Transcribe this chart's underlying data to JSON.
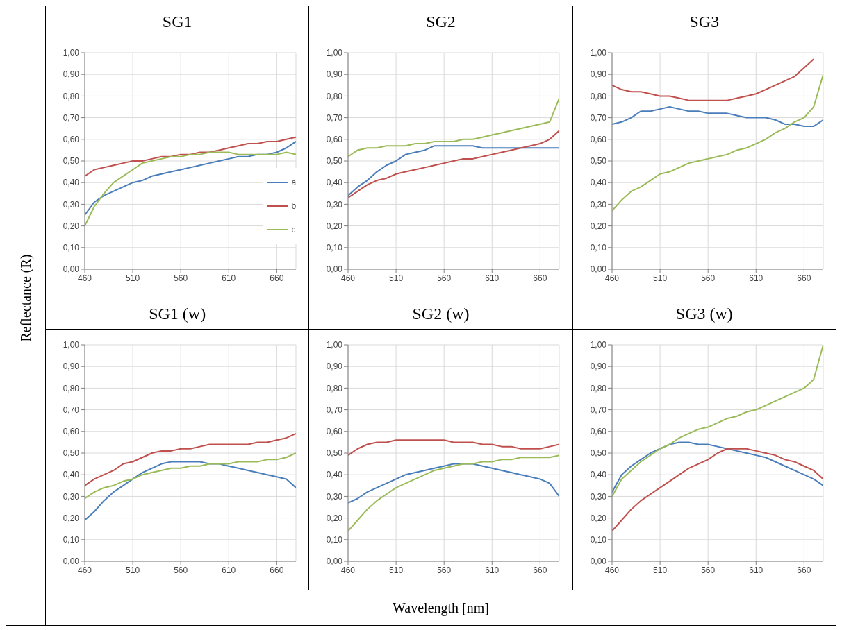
{
  "chart_data": [
    {
      "type": "line",
      "title": "SG1",
      "ylabel": "Reflectance (R)",
      "x": [
        460,
        470,
        480,
        490,
        500,
        510,
        520,
        530,
        540,
        550,
        560,
        570,
        580,
        590,
        600,
        610,
        620,
        630,
        640,
        650,
        660,
        670,
        680
      ],
      "xlim": [
        460,
        680
      ],
      "xticks": [
        460,
        510,
        560,
        610,
        660
      ],
      "ylim": [
        0,
        1
      ],
      "yticks": [
        {
          "value": 0,
          "label": "0,00"
        },
        {
          "value": 0.1,
          "label": "0,10"
        },
        {
          "value": 0.2,
          "label": "0,20"
        },
        {
          "value": 0.3,
          "label": "0,30"
        },
        {
          "value": 0.4,
          "label": "0,40"
        },
        {
          "value": 0.5,
          "label": "0,50"
        },
        {
          "value": 0.6,
          "label": "0,60"
        },
        {
          "value": 0.7,
          "label": "0,70"
        },
        {
          "value": 0.8,
          "label": "0,80"
        },
        {
          "value": 0.9,
          "label": "0,90"
        },
        {
          "value": 1,
          "label": "1,00"
        }
      ],
      "grid": true,
      "legend": "bottom right",
      "series": [
        {
          "name": "a",
          "color": "#4a7ebb",
          "values": [
            0.25,
            0.31,
            0.34,
            0.36,
            0.38,
            0.4,
            0.41,
            0.43,
            0.44,
            0.45,
            0.46,
            0.47,
            0.48,
            0.49,
            0.5,
            0.51,
            0.52,
            0.52,
            0.53,
            0.53,
            0.54,
            0.56,
            0.59
          ]
        },
        {
          "name": "b",
          "color": "#c0504d",
          "values": [
            0.43,
            0.46,
            0.47,
            0.48,
            0.49,
            0.5,
            0.5,
            0.51,
            0.52,
            0.52,
            0.53,
            0.53,
            0.54,
            0.54,
            0.55,
            0.56,
            0.57,
            0.58,
            0.58,
            0.59,
            0.59,
            0.6,
            0.61
          ]
        },
        {
          "name": "c",
          "color": "#9bbb59",
          "values": [
            0.2,
            0.29,
            0.35,
            0.4,
            0.43,
            0.46,
            0.49,
            0.5,
            0.51,
            0.52,
            0.52,
            0.53,
            0.53,
            0.54,
            0.54,
            0.54,
            0.53,
            0.53,
            0.53,
            0.53,
            0.53,
            0.54,
            0.53
          ]
        }
      ]
    },
    {
      "type": "line",
      "title": "SG2",
      "x": [
        460,
        470,
        480,
        490,
        500,
        510,
        520,
        530,
        540,
        550,
        560,
        570,
        580,
        590,
        600,
        610,
        620,
        630,
        640,
        650,
        660,
        670,
        680
      ],
      "xlim": [
        460,
        680
      ],
      "xticks": [
        460,
        510,
        560,
        610,
        660
      ],
      "ylim": [
        0,
        1
      ],
      "yticks": [
        {
          "value": 0,
          "label": "0,00"
        },
        {
          "value": 0.1,
          "label": "0,10"
        },
        {
          "value": 0.2,
          "label": "0,20"
        },
        {
          "value": 0.3,
          "label": "0,30"
        },
        {
          "value": 0.4,
          "label": "0,40"
        },
        {
          "value": 0.5,
          "label": "0,50"
        },
        {
          "value": 0.6,
          "label": "0,60"
        },
        {
          "value": 0.7,
          "label": "0,70"
        },
        {
          "value": 0.8,
          "label": "0,80"
        },
        {
          "value": 0.9,
          "label": "0,90"
        },
        {
          "value": 1,
          "label": "1,00"
        }
      ],
      "grid": true,
      "series": [
        {
          "color": "#4a7ebb",
          "values": [
            0.34,
            0.38,
            0.41,
            0.45,
            0.48,
            0.5,
            0.53,
            0.54,
            0.55,
            0.57,
            0.57,
            0.57,
            0.57,
            0.57,
            0.56,
            0.56,
            0.56,
            0.56,
            0.56,
            0.56,
            0.56,
            0.56,
            0.56
          ]
        },
        {
          "color": "#c0504d",
          "values": [
            0.33,
            0.36,
            0.39,
            0.41,
            0.42,
            0.44,
            0.45,
            0.46,
            0.47,
            0.48,
            0.49,
            0.5,
            0.51,
            0.51,
            0.52,
            0.53,
            0.54,
            0.55,
            0.56,
            0.57,
            0.58,
            0.6,
            0.64
          ]
        },
        {
          "color": "#9bbb59",
          "values": [
            0.52,
            0.55,
            0.56,
            0.56,
            0.57,
            0.57,
            0.57,
            0.58,
            0.58,
            0.59,
            0.59,
            0.59,
            0.6,
            0.6,
            0.61,
            0.62,
            0.63,
            0.64,
            0.65,
            0.66,
            0.67,
            0.68,
            0.79
          ]
        }
      ]
    },
    {
      "type": "line",
      "title": "SG3",
      "x": [
        460,
        470,
        480,
        490,
        500,
        510,
        520,
        530,
        540,
        550,
        560,
        570,
        580,
        590,
        600,
        610,
        620,
        630,
        640,
        650,
        660,
        670,
        680
      ],
      "xlim": [
        460,
        680
      ],
      "xticks": [
        460,
        510,
        560,
        610,
        660
      ],
      "ylim": [
        0,
        1
      ],
      "yticks": [
        {
          "value": 0,
          "label": "0,00"
        },
        {
          "value": 0.1,
          "label": "0,10"
        },
        {
          "value": 0.2,
          "label": "0,20"
        },
        {
          "value": 0.3,
          "label": "0,30"
        },
        {
          "value": 0.4,
          "label": "0,40"
        },
        {
          "value": 0.5,
          "label": "0,50"
        },
        {
          "value": 0.6,
          "label": "0,60"
        },
        {
          "value": 0.7,
          "label": "0,70"
        },
        {
          "value": 0.8,
          "label": "0,80"
        },
        {
          "value": 0.9,
          "label": "0,90"
        },
        {
          "value": 1,
          "label": "1,00"
        }
      ],
      "grid": true,
      "series": [
        {
          "color": "#4a7ebb",
          "values": [
            0.67,
            0.68,
            0.7,
            0.73,
            0.73,
            0.74,
            0.75,
            0.74,
            0.73,
            0.73,
            0.72,
            0.72,
            0.72,
            0.71,
            0.7,
            0.7,
            0.7,
            0.69,
            0.67,
            0.67,
            0.66,
            0.66,
            0.69
          ]
        },
        {
          "color": "#c0504d",
          "values": [
            0.85,
            0.83,
            0.82,
            0.82,
            0.81,
            0.8,
            0.8,
            0.79,
            0.78,
            0.78,
            0.78,
            0.78,
            0.78,
            0.79,
            0.8,
            0.81,
            0.83,
            0.85,
            0.87,
            0.89,
            0.93,
            0.97,
            null
          ]
        },
        {
          "color": "#9bbb59",
          "values": [
            0.27,
            0.32,
            0.36,
            0.38,
            0.41,
            0.44,
            0.45,
            0.47,
            0.49,
            0.5,
            0.51,
            0.52,
            0.53,
            0.55,
            0.56,
            0.58,
            0.6,
            0.63,
            0.65,
            0.68,
            0.7,
            0.75,
            0.9
          ]
        }
      ]
    },
    {
      "type": "line",
      "title": "SG1 (w)",
      "x": [
        460,
        470,
        480,
        490,
        500,
        510,
        520,
        530,
        540,
        550,
        560,
        570,
        580,
        590,
        600,
        610,
        620,
        630,
        640,
        650,
        660,
        670,
        680
      ],
      "xlim": [
        460,
        680
      ],
      "xticks": [
        460,
        510,
        560,
        610,
        660
      ],
      "ylim": [
        0,
        1
      ],
      "yticks": [
        {
          "value": 0,
          "label": "0,00"
        },
        {
          "value": 0.1,
          "label": "0,10"
        },
        {
          "value": 0.2,
          "label": "0,20"
        },
        {
          "value": 0.3,
          "label": "0,30"
        },
        {
          "value": 0.4,
          "label": "0,40"
        },
        {
          "value": 0.5,
          "label": "0,50"
        },
        {
          "value": 0.6,
          "label": "0,60"
        },
        {
          "value": 0.7,
          "label": "0,70"
        },
        {
          "value": 0.8,
          "label": "0,80"
        },
        {
          "value": 0.9,
          "label": "0,90"
        },
        {
          "value": 1,
          "label": "1,00"
        }
      ],
      "grid": true,
      "series": [
        {
          "color": "#4a7ebb",
          "values": [
            0.19,
            0.23,
            0.28,
            0.32,
            0.35,
            0.38,
            0.41,
            0.43,
            0.45,
            0.46,
            0.46,
            0.46,
            0.46,
            0.45,
            0.45,
            0.44,
            0.43,
            0.42,
            0.41,
            0.4,
            0.39,
            0.38,
            0.34
          ]
        },
        {
          "color": "#c0504d",
          "values": [
            0.35,
            0.38,
            0.4,
            0.42,
            0.45,
            0.46,
            0.48,
            0.5,
            0.51,
            0.51,
            0.52,
            0.52,
            0.53,
            0.54,
            0.54,
            0.54,
            0.54,
            0.54,
            0.55,
            0.55,
            0.56,
            0.57,
            0.59
          ]
        },
        {
          "color": "#9bbb59",
          "values": [
            0.29,
            0.32,
            0.34,
            0.35,
            0.37,
            0.38,
            0.4,
            0.41,
            0.42,
            0.43,
            0.43,
            0.44,
            0.44,
            0.45,
            0.45,
            0.45,
            0.46,
            0.46,
            0.46,
            0.47,
            0.47,
            0.48,
            0.5
          ]
        }
      ]
    },
    {
      "type": "line",
      "title": "SG2 (w)",
      "xlabel": "Wavelength [nm]",
      "x": [
        460,
        470,
        480,
        490,
        500,
        510,
        520,
        530,
        540,
        550,
        560,
        570,
        580,
        590,
        600,
        610,
        620,
        630,
        640,
        650,
        660,
        670,
        680
      ],
      "xlim": [
        460,
        680
      ],
      "xticks": [
        460,
        510,
        560,
        610,
        660
      ],
      "ylim": [
        0,
        1
      ],
      "yticks": [
        {
          "value": 0,
          "label": "0,00"
        },
        {
          "value": 0.1,
          "label": "0,10"
        },
        {
          "value": 0.2,
          "label": "0,20"
        },
        {
          "value": 0.3,
          "label": "0,30"
        },
        {
          "value": 0.4,
          "label": "0,40"
        },
        {
          "value": 0.5,
          "label": "0,50"
        },
        {
          "value": 0.6,
          "label": "0,60"
        },
        {
          "value": 0.7,
          "label": "0,70"
        },
        {
          "value": 0.8,
          "label": "0,80"
        },
        {
          "value": 0.9,
          "label": "0,90"
        },
        {
          "value": 1,
          "label": "1,00"
        }
      ],
      "grid": true,
      "series": [
        {
          "color": "#4a7ebb",
          "values": [
            0.27,
            0.29,
            0.32,
            0.34,
            0.36,
            0.38,
            0.4,
            0.41,
            0.42,
            0.43,
            0.44,
            0.45,
            0.45,
            0.45,
            0.44,
            0.43,
            0.42,
            0.41,
            0.4,
            0.39,
            0.38,
            0.36,
            0.3
          ]
        },
        {
          "color": "#c0504d",
          "values": [
            0.49,
            0.52,
            0.54,
            0.55,
            0.55,
            0.56,
            0.56,
            0.56,
            0.56,
            0.56,
            0.56,
            0.55,
            0.55,
            0.55,
            0.54,
            0.54,
            0.53,
            0.53,
            0.52,
            0.52,
            0.52,
            0.53,
            0.54
          ]
        },
        {
          "color": "#9bbb59",
          "values": [
            0.14,
            0.19,
            0.24,
            0.28,
            0.31,
            0.34,
            0.36,
            0.38,
            0.4,
            0.42,
            0.43,
            0.44,
            0.45,
            0.45,
            0.46,
            0.46,
            0.47,
            0.47,
            0.48,
            0.48,
            0.48,
            0.48,
            0.49
          ]
        }
      ]
    },
    {
      "type": "line",
      "title": "SG3 (w)",
      "x": [
        460,
        470,
        480,
        490,
        500,
        510,
        520,
        530,
        540,
        550,
        560,
        570,
        580,
        590,
        600,
        610,
        620,
        630,
        640,
        650,
        660,
        670,
        680
      ],
      "xlim": [
        460,
        680
      ],
      "xticks": [
        460,
        510,
        560,
        610,
        660
      ],
      "ylim": [
        0,
        1
      ],
      "yticks": [
        {
          "value": 0,
          "label": "0,00"
        },
        {
          "value": 0.1,
          "label": "0,10"
        },
        {
          "value": 0.2,
          "label": "0,20"
        },
        {
          "value": 0.3,
          "label": "0,30"
        },
        {
          "value": 0.4,
          "label": "0,40"
        },
        {
          "value": 0.5,
          "label": "0,50"
        },
        {
          "value": 0.6,
          "label": "0,60"
        },
        {
          "value": 0.7,
          "label": "0,70"
        },
        {
          "value": 0.8,
          "label": "0,80"
        },
        {
          "value": 0.9,
          "label": "0,90"
        },
        {
          "value": 1,
          "label": "1,00"
        }
      ],
      "grid": true,
      "series": [
        {
          "color": "#4a7ebb",
          "values": [
            0.32,
            0.4,
            0.44,
            0.47,
            0.5,
            0.52,
            0.54,
            0.55,
            0.55,
            0.54,
            0.54,
            0.53,
            0.52,
            0.51,
            0.5,
            0.49,
            0.48,
            0.46,
            0.44,
            0.42,
            0.4,
            0.38,
            0.35
          ]
        },
        {
          "color": "#c0504d",
          "values": [
            0.14,
            0.19,
            0.24,
            0.28,
            0.31,
            0.34,
            0.37,
            0.4,
            0.43,
            0.45,
            0.47,
            0.5,
            0.52,
            0.52,
            0.52,
            0.51,
            0.5,
            0.49,
            0.47,
            0.46,
            0.44,
            0.42,
            0.38
          ]
        },
        {
          "color": "#9bbb59",
          "values": [
            0.3,
            0.38,
            0.42,
            0.46,
            0.49,
            0.52,
            0.54,
            0.57,
            0.59,
            0.61,
            0.62,
            0.64,
            0.66,
            0.67,
            0.69,
            0.7,
            0.72,
            0.74,
            0.76,
            0.78,
            0.8,
            0.84,
            1.0
          ]
        }
      ]
    }
  ]
}
